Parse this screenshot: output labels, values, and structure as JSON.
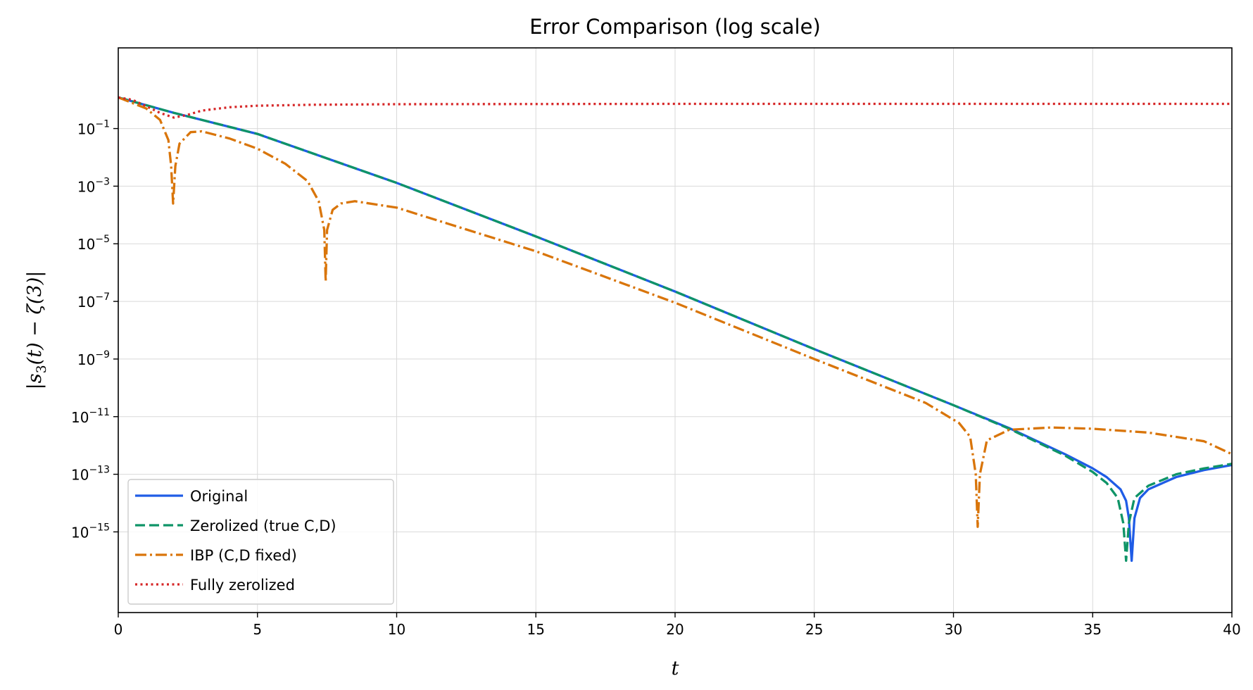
{
  "chart_data": {
    "type": "line",
    "title": "Error Comparison (log scale)",
    "xlabel": "t",
    "ylabel_parts": [
      "|s",
      "3",
      "(t) − ζ(3)|"
    ],
    "xlim": [
      0,
      40
    ],
    "ylim_log10": [
      -17.8,
      1.8
    ],
    "yscale": "log",
    "grid": true,
    "legend_position": "lower-left",
    "x_ticks": [
      0,
      5,
      10,
      15,
      20,
      25,
      30,
      35,
      40
    ],
    "y_tick_exponents": [
      -1,
      -3,
      -5,
      -7,
      -9,
      -11,
      -13,
      -15
    ],
    "y_tick_base": "10",
    "series": [
      {
        "name": "Original",
        "color": "#1f5ce6",
        "style": "solid",
        "points": [
          [
            0,
            1.2
          ],
          [
            2,
            0.35
          ],
          [
            5,
            0.065
          ],
          [
            10,
            0.0013
          ],
          [
            15,
            1.8e-05
          ],
          [
            20,
            2.2e-07
          ],
          [
            25,
            2.2e-09
          ],
          [
            30,
            2.5e-11
          ],
          [
            32,
            4e-12
          ],
          [
            34,
            5e-13
          ],
          [
            35,
            1.6e-13
          ],
          [
            35.5,
            8e-14
          ],
          [
            36,
            3e-14
          ],
          [
            36.2,
            1.2e-14
          ],
          [
            36.3,
            3e-15
          ],
          [
            36.4,
            1e-16
          ],
          [
            36.5,
            3e-15
          ],
          [
            36.7,
            1.5e-14
          ],
          [
            37,
            3e-14
          ],
          [
            38,
            8e-14
          ],
          [
            39,
            1.4e-13
          ],
          [
            40,
            2.1e-13
          ]
        ]
      },
      {
        "name": "Zerolized (true C,D)",
        "color": "#0f9467",
        "style": "dashed",
        "points": [
          [
            0,
            1.2
          ],
          [
            2,
            0.35
          ],
          [
            5,
            0.065
          ],
          [
            10,
            0.0013
          ],
          [
            15,
            1.8e-05
          ],
          [
            20,
            2.2e-07
          ],
          [
            25,
            2.2e-09
          ],
          [
            30,
            2.5e-11
          ],
          [
            32,
            3.8e-12
          ],
          [
            34,
            4.5e-13
          ],
          [
            35,
            1.2e-13
          ],
          [
            35.5,
            5e-14
          ],
          [
            35.9,
            1.5e-14
          ],
          [
            36.1,
            2e-15
          ],
          [
            36.2,
            1e-16
          ],
          [
            36.3,
            2e-15
          ],
          [
            36.5,
            1.5e-14
          ],
          [
            37,
            4e-14
          ],
          [
            38,
            1e-13
          ],
          [
            39,
            1.6e-13
          ],
          [
            40,
            2.3e-13
          ]
        ]
      },
      {
        "name": "IBP (C,D fixed)",
        "color": "#d9750a",
        "style": "dashdot",
        "points": [
          [
            0,
            1.2
          ],
          [
            1,
            0.5
          ],
          [
            1.5,
            0.2
          ],
          [
            1.8,
            0.04
          ],
          [
            1.9,
            0.005
          ],
          [
            1.97,
            0.00025
          ],
          [
            2.05,
            0.005
          ],
          [
            2.2,
            0.03
          ],
          [
            2.6,
            0.075
          ],
          [
            3,
            0.08
          ],
          [
            4,
            0.045
          ],
          [
            5,
            0.02
          ],
          [
            6,
            0.006
          ],
          [
            6.8,
            0.0015
          ],
          [
            7.2,
            0.0003
          ],
          [
            7.4,
            3e-05
          ],
          [
            7.45,
            5e-07
          ],
          [
            7.5,
            3e-05
          ],
          [
            7.7,
            0.00015
          ],
          [
            8,
            0.00025
          ],
          [
            8.5,
            0.0003
          ],
          [
            10,
            0.00018
          ],
          [
            15,
            5.5e-06
          ],
          [
            20,
            9e-08
          ],
          [
            25,
            1e-09
          ],
          [
            29,
            3e-11
          ],
          [
            30.2,
            6e-12
          ],
          [
            30.6,
            2e-12
          ],
          [
            30.8,
            1e-13
          ],
          [
            30.87,
            1.5e-15
          ],
          [
            30.95,
            1e-13
          ],
          [
            31.2,
            1.5e-12
          ],
          [
            32,
            3.5e-12
          ],
          [
            33.5,
            4.2e-12
          ],
          [
            35,
            3.8e-12
          ],
          [
            37,
            2.8e-12
          ],
          [
            39,
            1.4e-12
          ],
          [
            40,
            5e-13
          ]
        ]
      },
      {
        "name": "Fully zerolized",
        "color": "#d62728",
        "style": "dotted",
        "points": [
          [
            0,
            1.2
          ],
          [
            0.5,
            1.0
          ],
          [
            1,
            0.6
          ],
          [
            1.5,
            0.35
          ],
          [
            2,
            0.24
          ],
          [
            2.5,
            0.3
          ],
          [
            3,
            0.42
          ],
          [
            4,
            0.55
          ],
          [
            5,
            0.62
          ],
          [
            7,
            0.67
          ],
          [
            10,
            0.7
          ],
          [
            15,
            0.71
          ],
          [
            20,
            0.72
          ],
          [
            30,
            0.72
          ],
          [
            40,
            0.72
          ]
        ]
      }
    ]
  }
}
